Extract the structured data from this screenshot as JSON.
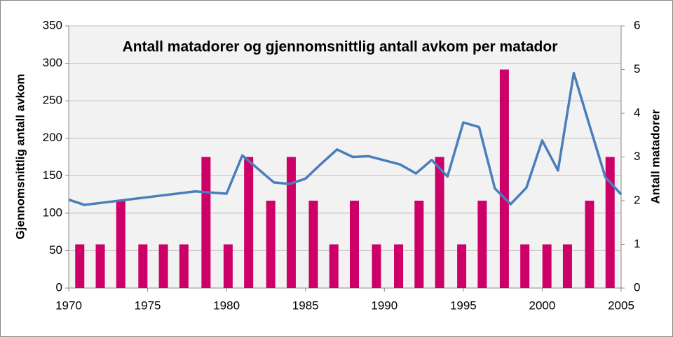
{
  "chart_data": {
    "type": "bar-line",
    "title": "Antall matadorer og gjennomsnittlig antall avkom per matador",
    "y_label": "Gjennomsnittlig antall avkom",
    "y2_label": "Antall matadorer",
    "xlim": [
      1970,
      2005
    ],
    "xticks": [
      1970,
      1975,
      1980,
      1985,
      1990,
      1995,
      2000,
      2005
    ],
    "ylim": [
      0,
      350
    ],
    "yticks": [
      0,
      50,
      100,
      150,
      200,
      250,
      300,
      350
    ],
    "y2lim": [
      0,
      6
    ],
    "y2ticks": [
      0,
      1,
      2,
      3,
      4,
      5,
      6
    ],
    "grid": true,
    "series": [
      {
        "name": "Antall matadorer",
        "type": "bar",
        "axis": "y2",
        "color": "#cc0066",
        "x": [
          1970.7,
          1972.0,
          1973.3,
          1974.7,
          1976.0,
          1977.3,
          1978.7,
          1980.1,
          1981.4,
          1982.8,
          1984.1,
          1985.5,
          1986.8,
          1988.1,
          1989.5,
          1990.9,
          1992.2,
          1993.5,
          1994.9,
          1996.2,
          1997.6,
          1998.9,
          2000.3,
          2001.6,
          2003.0,
          2004.3
        ],
        "values": [
          1,
          1,
          2,
          1,
          1,
          1,
          3,
          1,
          3,
          2,
          3,
          2,
          1,
          2,
          1,
          1,
          2,
          3,
          1,
          2,
          5,
          1,
          1,
          1,
          2,
          3
        ]
      },
      {
        "name": "Gjennomsnittlig antall avkom",
        "type": "line",
        "color": "#4a7ebb",
        "x": [
          1970,
          1971,
          1978,
          1980,
          1981,
          1983,
          1984,
          1985,
          1986,
          1987,
          1988,
          1989,
          1991,
          1992,
          1993,
          1994,
          1995,
          1996,
          1997,
          1998,
          1999,
          2000,
          2001,
          2002,
          2003,
          2004,
          2005
        ],
        "values": [
          118,
          111,
          129,
          126,
          177,
          141,
          139,
          146,
          166,
          185,
          175,
          176,
          165,
          153,
          171,
          149,
          221,
          215,
          133,
          112,
          134,
          197,
          157,
          287,
          217,
          148,
          125
        ]
      }
    ]
  }
}
